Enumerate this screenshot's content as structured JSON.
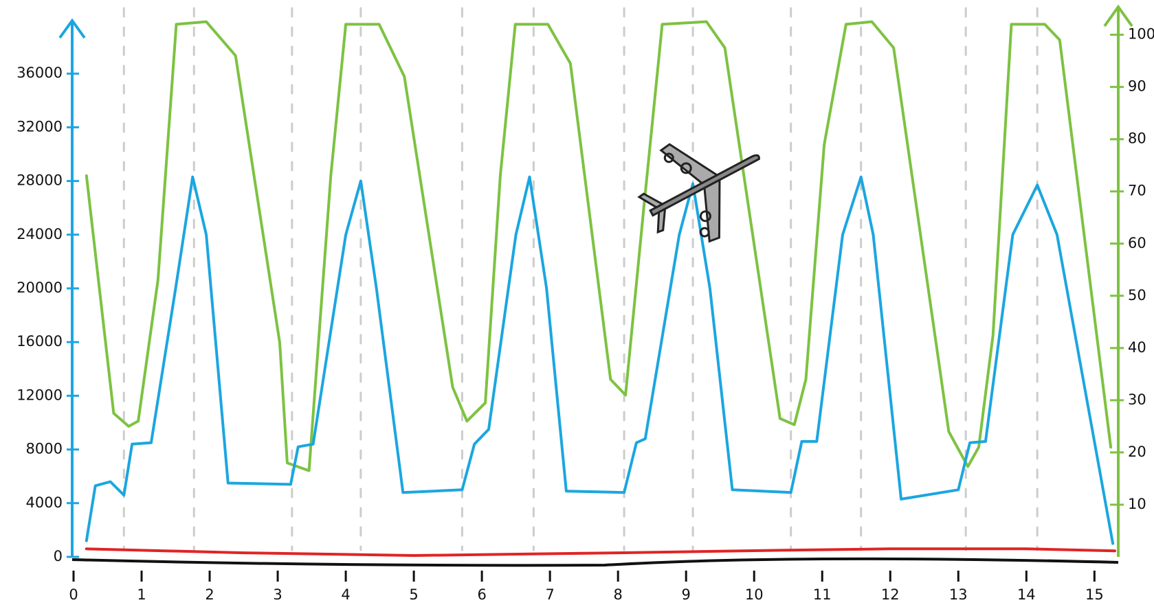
{
  "chart_data": {
    "type": "line",
    "xlim": [
      0,
      15.35
    ],
    "xticks": [
      0,
      1,
      2,
      3,
      4,
      5,
      6,
      7,
      8,
      9,
      10,
      11,
      12,
      13,
      14,
      15
    ],
    "ylim": [
      0,
      40000
    ],
    "yticks": [
      0,
      4000,
      8000,
      12000,
      16000,
      20000,
      24000,
      28000,
      32000,
      36000
    ],
    "y2lim": [
      0,
      106
    ],
    "y2ticks": [
      10,
      20,
      30,
      40,
      50,
      60,
      70,
      80,
      90,
      100
    ],
    "vlines": [
      0.74,
      1.77,
      3.21,
      4.22,
      5.71,
      6.76,
      8.09,
      9.1,
      10.54,
      11.57,
      13.11,
      14.16
    ],
    "left_axis_color": "#1ba6e0",
    "right_axis_color": "#7dc242",
    "series": [
      {
        "color": "#7dc242",
        "axis": "y2",
        "x": [
          0.19,
          0.59,
          0.81,
          0.95,
          1.24,
          1.51,
          1.95,
          2.38,
          3.03,
          3.14,
          3.46,
          3.78,
          4.0,
          4.49,
          4.86,
          5.57,
          5.78,
          6.05,
          6.27,
          6.49,
          6.97,
          7.3,
          7.89,
          8.11,
          8.38,
          8.65,
          9.3,
          9.57,
          10.38,
          10.59,
          10.76,
          11.03,
          11.35,
          11.73,
          12.05,
          12.86,
          13.14,
          13.3,
          13.51,
          13.78,
          14.27,
          14.49,
          15.24
        ],
        "values": [
          73,
          27.5,
          25,
          26,
          53,
          102,
          102.5,
          96,
          41,
          18,
          16.5,
          73,
          102,
          102,
          92,
          32.5,
          26,
          29.5,
          73,
          102,
          102,
          94.5,
          34,
          31,
          67,
          102,
          102.5,
          97.5,
          26.5,
          25.3,
          34,
          79,
          102,
          102.5,
          97.5,
          24,
          17.3,
          21,
          42.5,
          102,
          102,
          99,
          21
        ]
      },
      {
        "color": "#1ba6e0",
        "x": [
          0.19,
          0.32,
          0.54,
          0.74,
          0.86,
          1.14,
          1.5,
          1.75,
          1.95,
          2.27,
          3.19,
          3.3,
          3.52,
          4.0,
          4.22,
          4.45,
          4.84,
          5.71,
          5.89,
          6.1,
          6.5,
          6.7,
          6.95,
          7.24,
          8.09,
          8.27,
          8.4,
          8.9,
          9.1,
          9.35,
          9.68,
          10.54,
          10.7,
          10.92,
          11.3,
          11.57,
          11.75,
          12.16,
          13.0,
          13.17,
          13.4,
          13.8,
          14.16,
          14.45,
          15.27
        ],
        "values": [
          1200,
          5300,
          5600,
          4600,
          8400,
          8500,
          20000,
          28300,
          24000,
          5500,
          5400,
          8200,
          8400,
          24000,
          28000,
          20000,
          4800,
          5000,
          8400,
          9500,
          24000,
          28300,
          20000,
          4900,
          4800,
          8500,
          8800,
          24000,
          27800,
          20000,
          5000,
          4800,
          8600,
          8600,
          24000,
          28300,
          24000,
          4300,
          5000,
          8500,
          8600,
          24000,
          27700,
          24000,
          1000
        ]
      },
      {
        "color": "#e02424",
        "x": [
          0.19,
          2.5,
          5.0,
          8.0,
          10.5,
          12.0,
          14.0,
          15.3
        ],
        "values": [
          600,
          300,
          100,
          300,
          500,
          600,
          600,
          450
        ]
      }
    ]
  }
}
